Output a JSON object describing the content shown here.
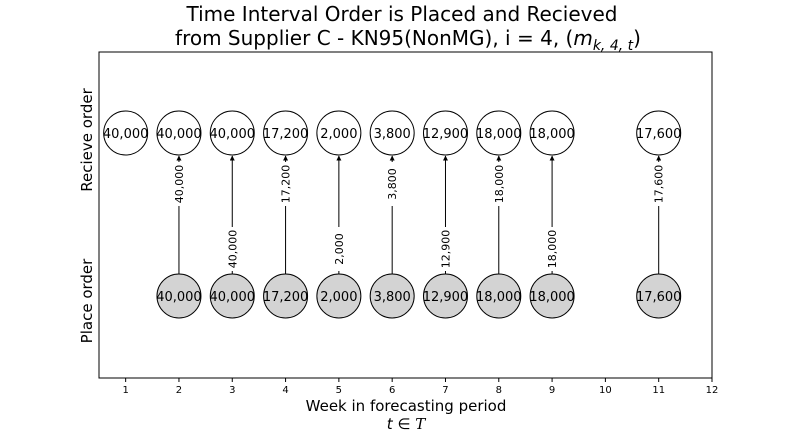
{
  "title_line1": "Time Interval Order is Placed and Recieved",
  "title_line2_prefix": "from Supplier C - KN95(NonMG), i = 4, (",
  "title_line2_math_base": "m",
  "title_line2_math_sub": "k, 4, t",
  "title_line2_suffix": ")",
  "xlabel": "Week in forecasting period",
  "xlabel_math_main": "t ∈ ",
  "xlabel_math_script": "T",
  "ylabel_top": "Recieve order",
  "ylabel_bottom": "Place order",
  "colors": {
    "receive_fill": "#ffffff",
    "place_fill": "#d3d3d3",
    "edge": "#000000"
  },
  "chart_data": {
    "type": "diagram",
    "xlim": [
      0.5,
      12
    ],
    "x_ticks": [
      1,
      2,
      3,
      4,
      5,
      6,
      7,
      8,
      9,
      10,
      11,
      12
    ],
    "receive_orders": [
      {
        "week": 1,
        "label": "40,000"
      },
      {
        "week": 2,
        "label": "40,000"
      },
      {
        "week": 3,
        "label": "40,000"
      },
      {
        "week": 4,
        "label": "17,200"
      },
      {
        "week": 5,
        "label": "2,000"
      },
      {
        "week": 6,
        "label": "3,800"
      },
      {
        "week": 7,
        "label": "12,900"
      },
      {
        "week": 8,
        "label": "18,000"
      },
      {
        "week": 9,
        "label": "18,000"
      },
      {
        "week": 11,
        "label": "17,600"
      }
    ],
    "place_orders": [
      {
        "week": 2,
        "label": "40,000"
      },
      {
        "week": 3,
        "label": "40,000"
      },
      {
        "week": 4,
        "label": "17,200"
      },
      {
        "week": 5,
        "label": "2,000"
      },
      {
        "week": 6,
        "label": "3,800"
      },
      {
        "week": 7,
        "label": "12,900"
      },
      {
        "week": 8,
        "label": "18,000"
      },
      {
        "week": 9,
        "label": "18,000"
      },
      {
        "week": 11,
        "label": "17,600"
      }
    ],
    "arrows": [
      {
        "week": 2,
        "label": "40,000",
        "label_pos": "upper"
      },
      {
        "week": 3,
        "label": "40,000",
        "label_pos": "lower"
      },
      {
        "week": 4,
        "label": "17,200",
        "label_pos": "upper"
      },
      {
        "week": 5,
        "label": "2,000",
        "label_pos": "lower"
      },
      {
        "week": 6,
        "label": "3,800",
        "label_pos": "upper"
      },
      {
        "week": 7,
        "label": "12,900",
        "label_pos": "lower"
      },
      {
        "week": 8,
        "label": "18,000",
        "label_pos": "upper"
      },
      {
        "week": 9,
        "label": "18,000",
        "label_pos": "lower"
      },
      {
        "week": 11,
        "label": "17,600",
        "label_pos": "upper"
      }
    ]
  }
}
